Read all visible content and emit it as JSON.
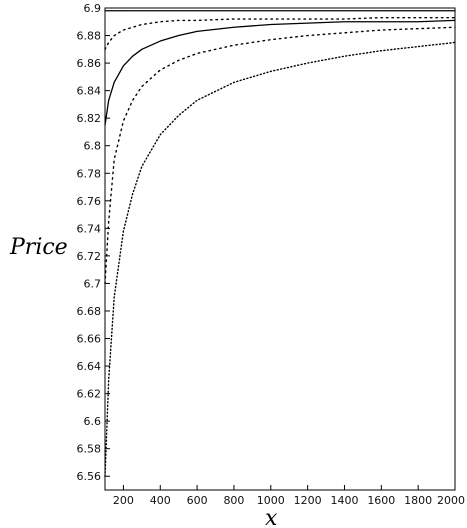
{
  "chart_data": {
    "type": "line",
    "title": "",
    "xlabel": "x",
    "ylabel": "Price",
    "xlim": [
      100,
      2000
    ],
    "ylim": [
      6.55,
      6.9
    ],
    "grid": false,
    "legend": "none",
    "x_ticks": [
      200,
      400,
      600,
      800,
      1000,
      1200,
      1400,
      1600,
      1800,
      2000
    ],
    "y_ticks": [
      6.56,
      6.58,
      6.6,
      6.62,
      6.64,
      6.66,
      6.68,
      6.7,
      6.72,
      6.74,
      6.76,
      6.78,
      6.8,
      6.82,
      6.84,
      6.86,
      6.88,
      6.9
    ],
    "x": [
      100,
      120,
      150,
      200,
      250,
      300,
      400,
      500,
      600,
      800,
      1000,
      1200,
      1400,
      1600,
      1800,
      2000
    ],
    "series": [
      {
        "style": "solid",
        "values": [
          6.815,
          6.833,
          6.846,
          6.858,
          6.865,
          6.87,
          6.876,
          6.88,
          6.883,
          6.886,
          6.888,
          6.889,
          6.89,
          6.89,
          6.89,
          6.891
        ]
      },
      {
        "style": "dotted",
        "values": [
          6.87,
          6.875,
          6.88,
          6.884,
          6.886,
          6.888,
          6.89,
          6.891,
          6.891,
          6.892,
          6.892,
          6.892,
          6.892,
          6.893,
          6.893,
          6.893
        ]
      },
      {
        "style": "dotted",
        "values": [
          6.7,
          6.745,
          6.79,
          6.818,
          6.833,
          6.843,
          6.855,
          6.862,
          6.867,
          6.873,
          6.877,
          6.88,
          6.882,
          6.884,
          6.885,
          6.886
        ]
      },
      {
        "style": "dashdot",
        "values": [
          6.56,
          6.63,
          6.69,
          6.738,
          6.765,
          6.785,
          6.808,
          6.822,
          6.833,
          6.846,
          6.854,
          6.86,
          6.865,
          6.869,
          6.872,
          6.875
        ]
      },
      {
        "style": "solid",
        "values": [
          6.898,
          6.898,
          6.898,
          6.898,
          6.898,
          6.898,
          6.898,
          6.898,
          6.898,
          6.898,
          6.898,
          6.898,
          6.898,
          6.898,
          6.898,
          6.898
        ]
      }
    ]
  }
}
